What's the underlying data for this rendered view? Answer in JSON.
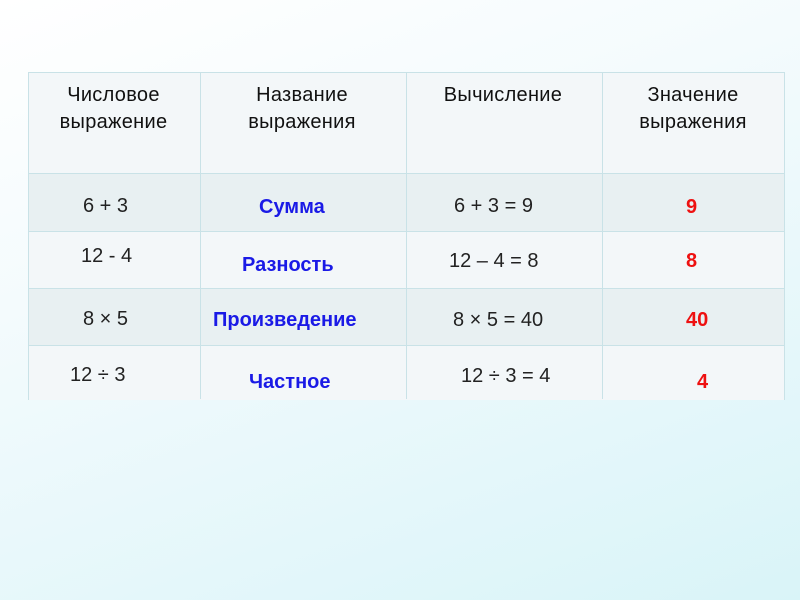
{
  "headers": [
    [
      "Числовое",
      "выражение"
    ],
    [
      "Название",
      "выражения"
    ],
    [
      "Вычисление"
    ],
    [
      "Значение",
      "выражения"
    ]
  ],
  "rows": [
    {
      "expression": "6 + 3",
      "name": "Сумма",
      "calculation": "6 + 3 = 9",
      "value": "9"
    },
    {
      "expression": "12 - 4",
      "name": "Разность",
      "calculation": "12 – 4 = 8",
      "value": "8"
    },
    {
      "expression": "8 × 5",
      "name": "Произведение",
      "calculation": "8 × 5 = 40",
      "value": "40"
    },
    {
      "expression": "12 ÷ 3",
      "name": "Частное",
      "calculation": "12 ÷ 3 = 4",
      "value": "4"
    }
  ],
  "colors": {
    "name": "#1a1ae6",
    "value": "#ee1111"
  }
}
